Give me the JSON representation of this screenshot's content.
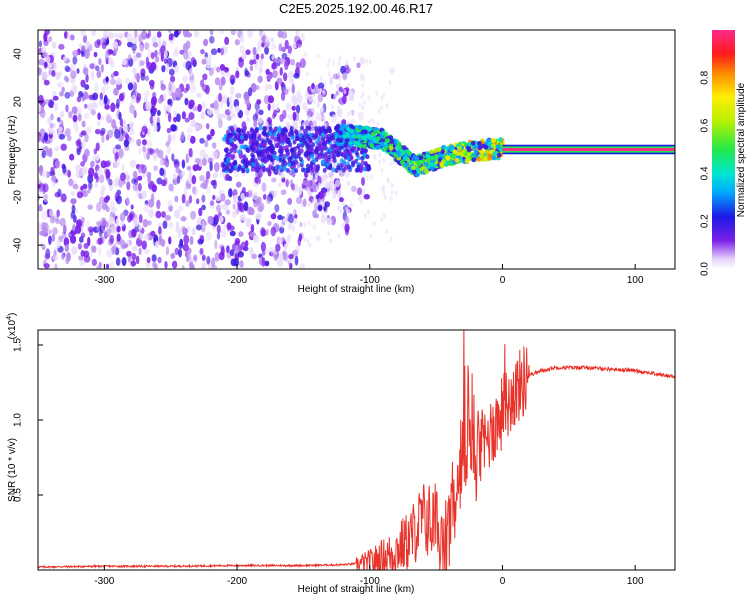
{
  "title": "C2E5.2025.192.00.46.R17",
  "chart_data": [
    {
      "type": "heatmap",
      "xlabel": "Height of straight line (km)",
      "ylabel": "Frequency (Hz)",
      "xlim": [
        -350,
        130
      ],
      "ylim": [
        -50,
        50
      ],
      "xticks": [
        -300,
        -200,
        -100,
        0,
        100
      ],
      "yticks": [
        -40,
        -20,
        0,
        20,
        40
      ],
      "colorbar": {
        "label": "Normalized spectral amplitude",
        "range": [
          0,
          1
        ],
        "ticks": [
          "0.0",
          "0.2",
          "0.4",
          "0.6",
          "0.8"
        ]
      },
      "features": [
        {
          "x": [
            -350,
            -150
          ],
          "freq_spread": [
            -50,
            50
          ],
          "amplitude": 0.1
        },
        {
          "x": [
            -150,
            -100
          ],
          "freq_spread": [
            -25,
            40
          ],
          "amplitude": 0.1
        },
        {
          "x": [
            -100,
            -60
          ],
          "freq_center": [
            5,
            -8
          ],
          "amplitude": 0.4
        },
        {
          "x": [
            -60,
            0
          ],
          "freq_center": [
            -5,
            2
          ],
          "amplitude": 0.6
        },
        {
          "x": [
            0,
            130
          ],
          "freq_center": [
            0,
            0
          ],
          "amplitude": 0.95
        }
      ]
    },
    {
      "type": "line",
      "xlabel": "Height of straight line (km)",
      "ylabel": "SNR (10 * v/v)",
      "multiplier": "(x10^4)",
      "xlim": [
        -350,
        130
      ],
      "ylim": [
        0,
        1.6
      ],
      "xticks": [
        -300,
        -200,
        -100,
        0,
        100
      ],
      "yticks": [
        "0.5",
        "1.0",
        "1.5"
      ],
      "series": [
        {
          "color": "#e8332a",
          "x": [
            -350,
            -300,
            -250,
            -200,
            -150,
            -120,
            -100,
            -85,
            -70,
            -60,
            -50,
            -45,
            -40,
            -30,
            -25,
            -20,
            -10,
            0,
            10,
            20,
            30,
            40,
            60,
            80,
            100,
            120,
            130
          ],
          "y": [
            0.02,
            0.025,
            0.025,
            0.03,
            0.03,
            0.035,
            0.05,
            0.1,
            0.2,
            0.35,
            0.3,
            0.05,
            0.3,
            0.6,
            0.85,
            0.7,
            0.9,
            1.05,
            1.2,
            1.3,
            1.33,
            1.35,
            1.35,
            1.34,
            1.33,
            1.3,
            1.29
          ]
        }
      ]
    }
  ]
}
